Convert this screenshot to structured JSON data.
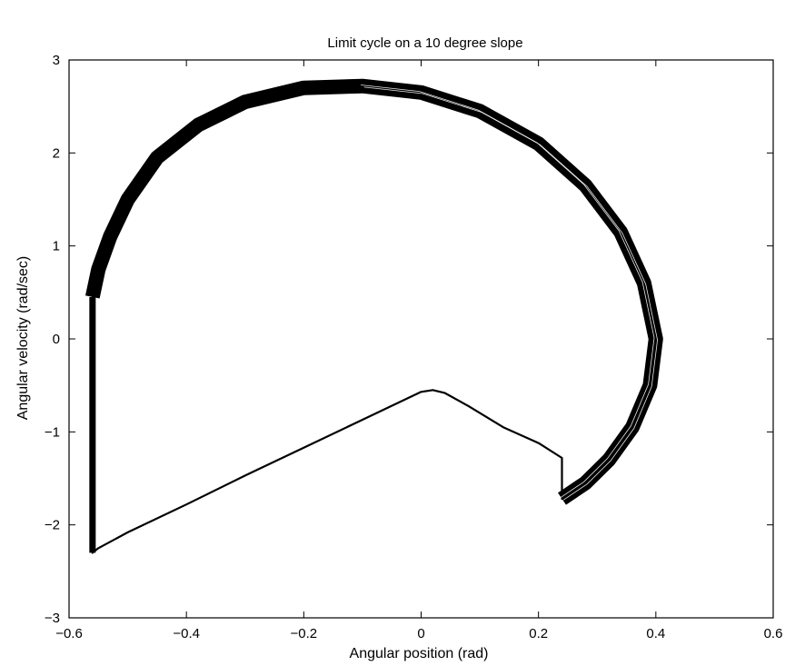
{
  "chart_data": {
    "type": "line",
    "title": "Limit cycle on a 10 degree slope",
    "xlabel": "Angular position (rad)",
    "ylabel": "Angular velocity (rad/sec)",
    "xlim": [
      -0.6,
      0.6
    ],
    "ylim": [
      -3,
      3
    ],
    "x_ticks": [
      -0.6,
      -0.4,
      -0.2,
      0,
      0.2,
      0.4,
      0.6
    ],
    "y_ticks": [
      -3,
      -2,
      -1,
      0,
      1,
      2,
      3
    ],
    "x_tick_labels": [
      "−0.6",
      "−0.4",
      "−0.2",
      "0",
      "0.2",
      "0.4",
      "0.6"
    ],
    "y_tick_labels": [
      "−3",
      "−2",
      "−1",
      "0",
      "1",
      "2",
      "3"
    ],
    "grid": false,
    "line_color": "#000000",
    "series": [
      {
        "points": [
          [
            -0.56,
            0.45
          ],
          [
            -0.55,
            0.75
          ],
          [
            -0.53,
            1.1
          ],
          [
            -0.5,
            1.5
          ],
          [
            -0.45,
            1.95
          ],
          [
            -0.38,
            2.3
          ],
          [
            -0.3,
            2.55
          ],
          [
            -0.2,
            2.7
          ],
          [
            -0.1,
            2.72
          ],
          [
            0.0,
            2.65
          ],
          [
            0.1,
            2.45
          ],
          [
            0.2,
            2.1
          ],
          [
            0.28,
            1.65
          ],
          [
            0.34,
            1.15
          ],
          [
            0.38,
            0.6
          ],
          [
            0.4,
            0.0
          ],
          [
            0.39,
            -0.5
          ],
          [
            0.36,
            -0.95
          ],
          [
            0.32,
            -1.3
          ],
          [
            0.28,
            -1.55
          ],
          [
            0.24,
            -1.72
          ],
          [
            0.24,
            -1.28
          ],
          [
            0.2,
            -1.12
          ],
          [
            0.14,
            -0.95
          ],
          [
            0.08,
            -0.72
          ],
          [
            0.04,
            -0.58
          ],
          [
            0.02,
            -0.55
          ],
          [
            0.0,
            -0.57
          ],
          [
            -0.1,
            -0.87
          ],
          [
            -0.2,
            -1.17
          ],
          [
            -0.3,
            -1.47
          ],
          [
            -0.4,
            -1.78
          ],
          [
            -0.5,
            -2.08
          ],
          [
            -0.55,
            -2.25
          ],
          [
            -0.56,
            -2.3
          ],
          [
            -0.56,
            0.45
          ]
        ]
      }
    ]
  }
}
